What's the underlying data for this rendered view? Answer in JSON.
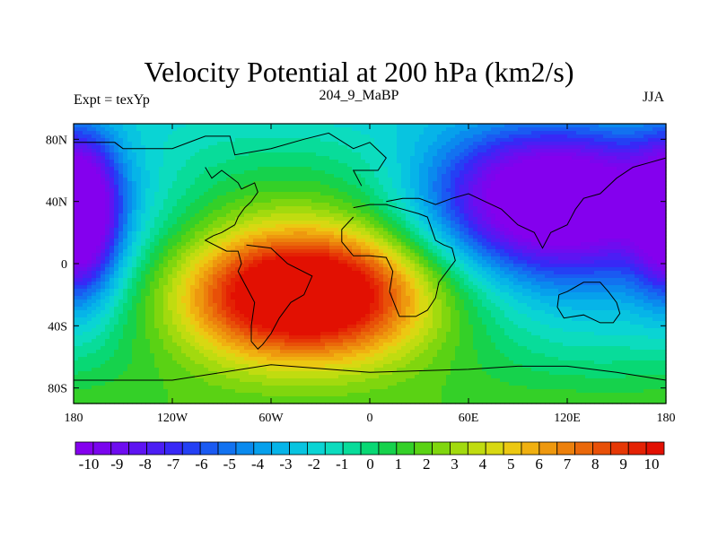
{
  "header": {
    "title": "Velocity Potential at 200 hPa (km2/s)",
    "left_label": "Expt = texYp",
    "center_label": "204_9_MaBP",
    "right_label": "JJA"
  },
  "chart_data": {
    "type": "heatmap",
    "title": "Velocity Potential at 200 hPa (km2/s)",
    "map_projection": "cylindrical equidistant",
    "x_range": [
      -180,
      180
    ],
    "y_range": [
      -90,
      90
    ],
    "x_tick_labels": [
      "180",
      "120W",
      "60W",
      "0",
      "60E",
      "120E",
      "180"
    ],
    "x_tick_values": [
      -180,
      -120,
      -60,
      0,
      60,
      120,
      180
    ],
    "y_tick_labels": [
      "80N",
      "40N",
      "0",
      "40S",
      "80S"
    ],
    "y_tick_values": [
      80,
      40,
      0,
      -40,
      -80
    ],
    "colorbar": {
      "labels": [
        "-10",
        "-9",
        "-8",
        "-7",
        "-6",
        "-5",
        "-4",
        "-3",
        "-2",
        "-1",
        "0",
        "1",
        "2",
        "3",
        "4",
        "5",
        "6",
        "7",
        "8",
        "9",
        "10"
      ],
      "min": -10.5,
      "max": 10.5,
      "step": 0.5,
      "colors": [
        "#8400ee",
        "#7a05ee",
        "#6e0cf0",
        "#5e14f2",
        "#4c1ef4",
        "#3828f6",
        "#2440f4",
        "#1a5af2",
        "#1272f0",
        "#0a8aee",
        "#06a0ec",
        "#06b4e8",
        "#08c4e0",
        "#0ad4d4",
        "#0cdcbe",
        "#08dc9a",
        "#08d874",
        "#16d24c",
        "#34d028",
        "#5ad214",
        "#80d60e",
        "#a2da0e",
        "#c0dc10",
        "#d8d812",
        "#ecc812",
        "#f0b010",
        "#ee980e",
        "#ec800c",
        "#ea680a",
        "#e85008",
        "#e63806",
        "#e42204",
        "#e21002"
      ]
    },
    "field_centers": [
      {
        "name": "divergence-max",
        "lon": -40,
        "lat": -20,
        "value": 10
      },
      {
        "name": "convergence-min-pacific",
        "lon": 110,
        "lat": 45,
        "value": -10
      },
      {
        "name": "convergence-min-west",
        "lon": -175,
        "lat": 40,
        "value": -9
      }
    ]
  }
}
